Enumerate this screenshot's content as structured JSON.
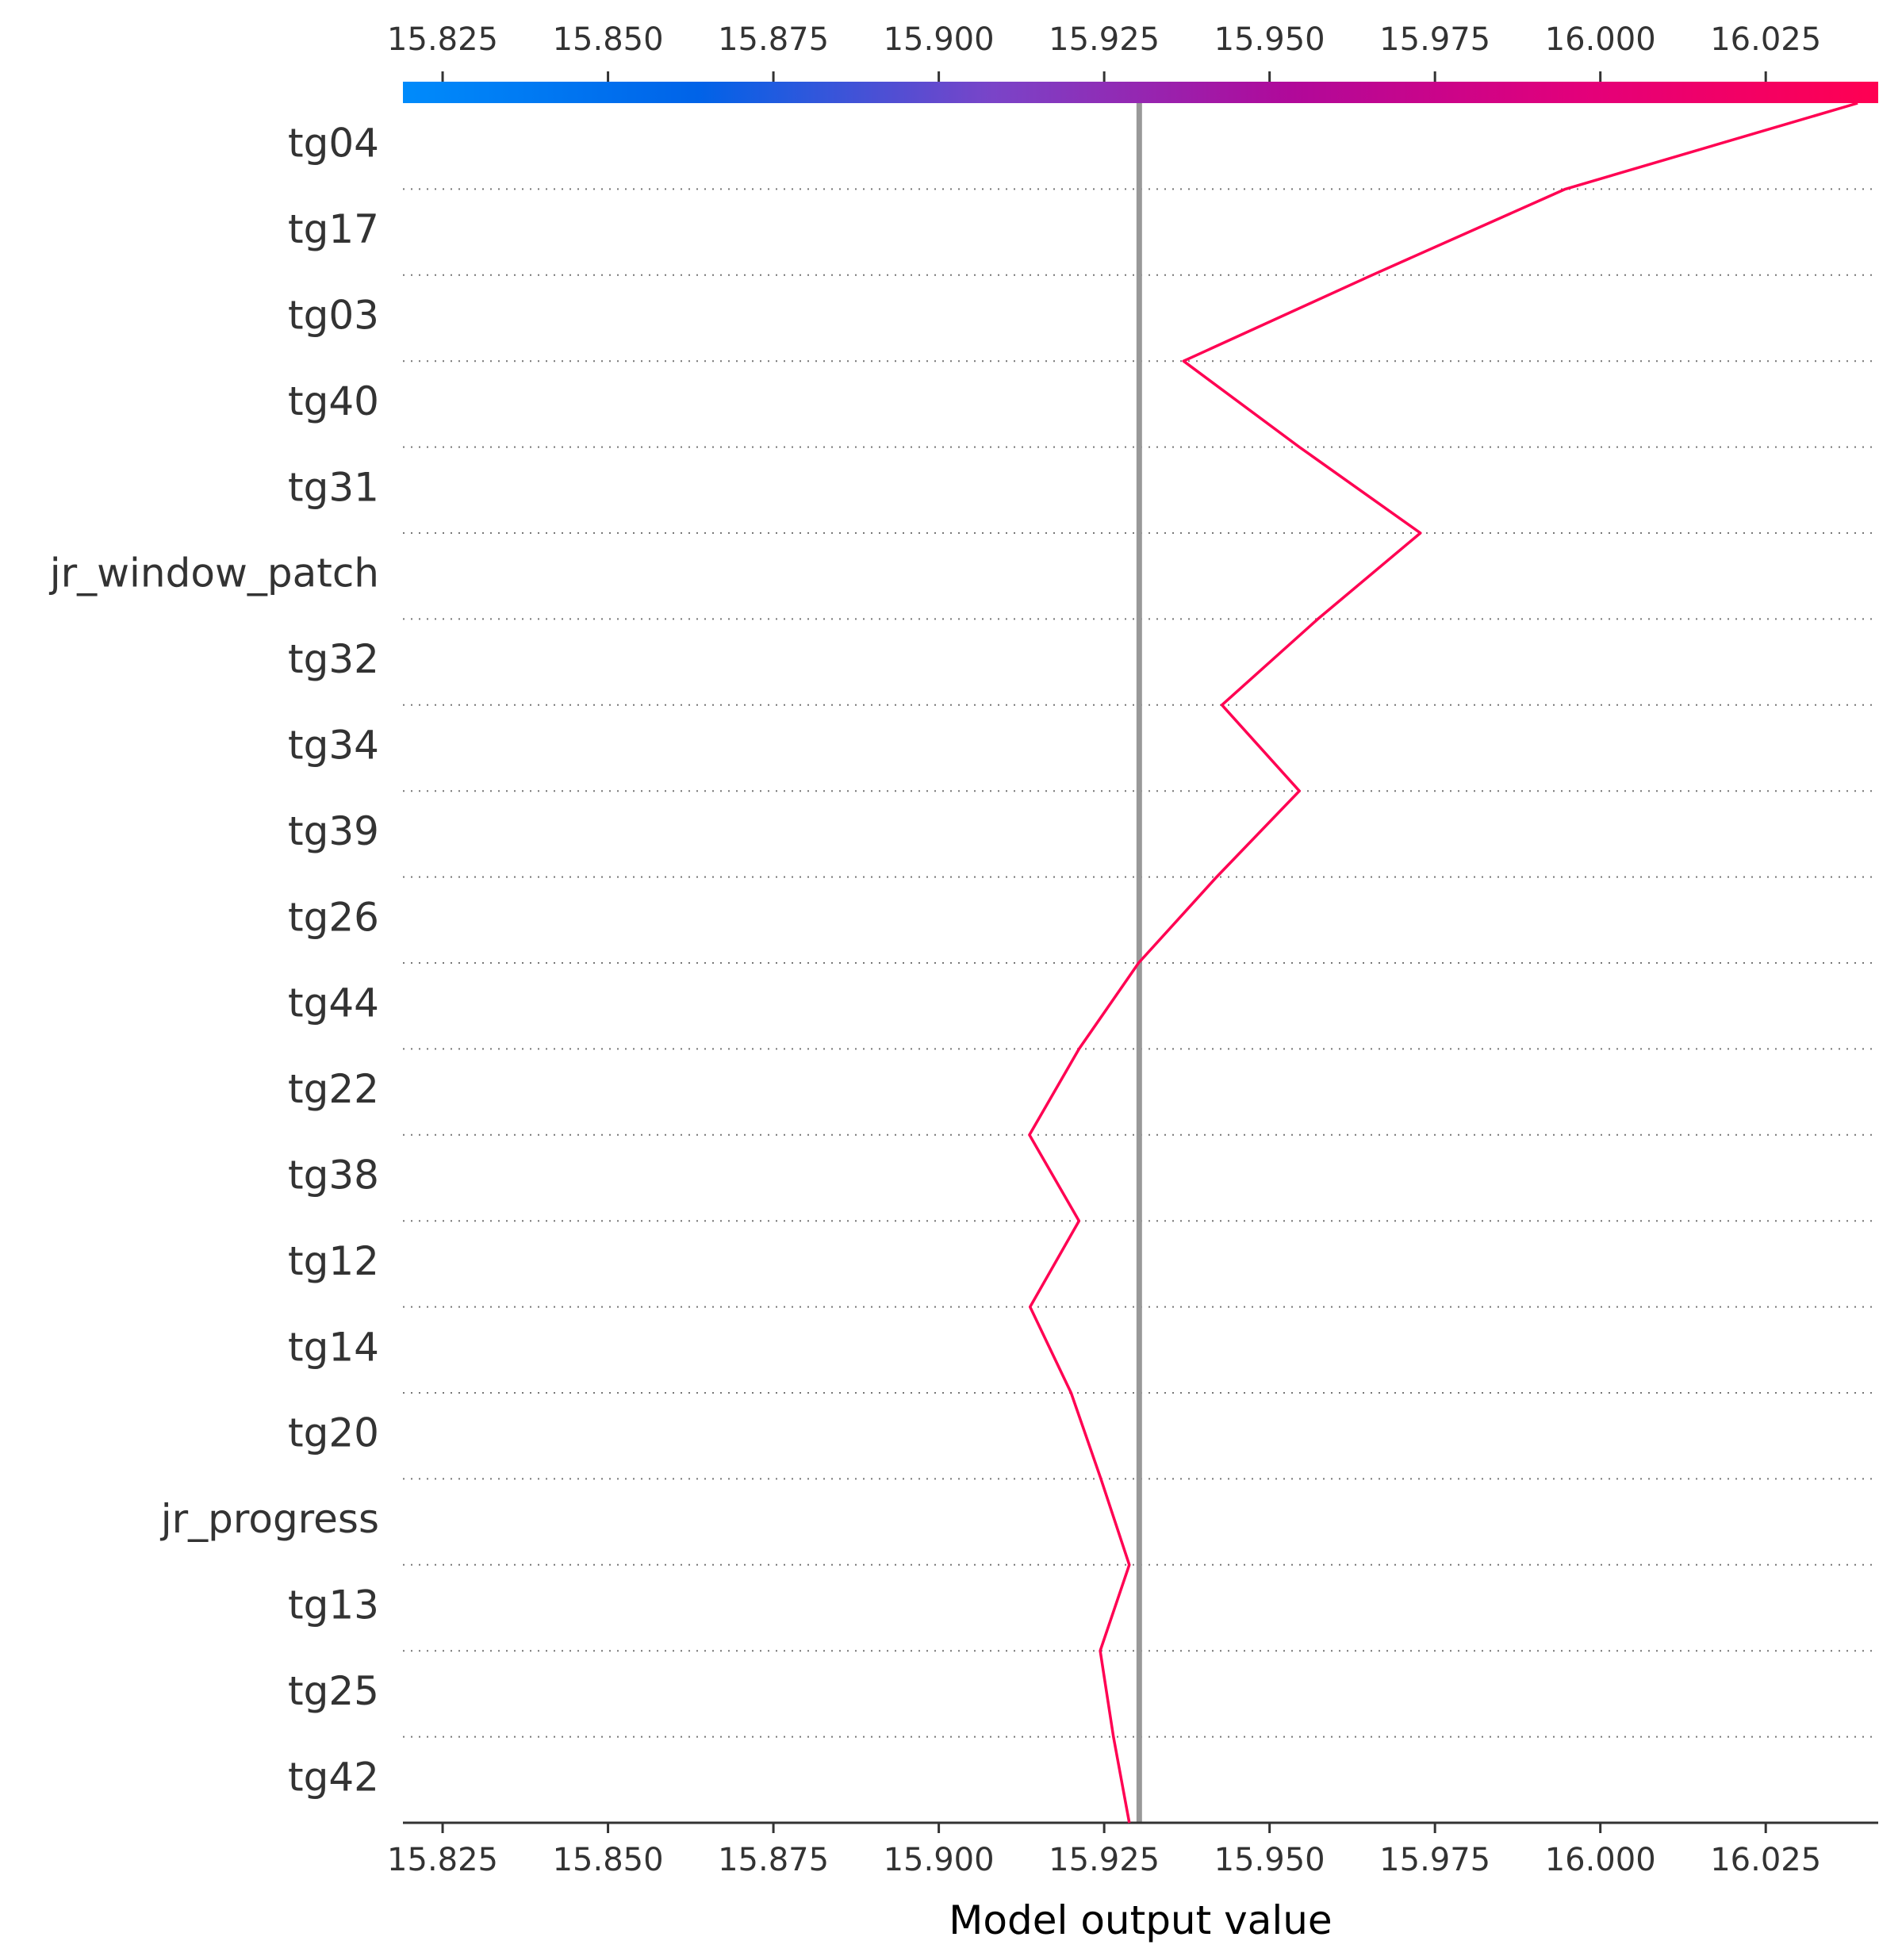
{
  "chart_data": {
    "type": "line",
    "xlabel": "Model output value",
    "xlim": [
      15.819,
      16.042
    ],
    "x_ticks": [
      "15.825",
      "15.850",
      "15.875",
      "15.900",
      "15.925",
      "15.950",
      "15.975",
      "16.000",
      "16.025"
    ],
    "x_tick_values": [
      15.825,
      15.85,
      15.875,
      15.9,
      15.925,
      15.95,
      15.975,
      16.0,
      16.025
    ],
    "base_value": 15.9303,
    "features": [
      "tg04",
      "tg17",
      "tg03",
      "tg40",
      "tg31",
      "jr_window_patch",
      "tg32",
      "tg34",
      "tg39",
      "tg26",
      "tg44",
      "tg22",
      "tg38",
      "tg12",
      "tg14",
      "tg20",
      "jr_progress",
      "tg13",
      "tg25",
      "tg42"
    ],
    "path_values": [
      16.0389,
      15.9947,
      15.9655,
      15.937,
      15.9545,
      15.9728,
      15.9573,
      15.9428,
      15.9545,
      15.942,
      15.9302,
      15.9212,
      15.9137,
      15.9212,
      15.9138,
      15.92,
      15.9245,
      15.9288,
      15.9244,
      15.9264,
      15.9288
    ],
    "grid": "dotted horizontal",
    "colorbar": {
      "position": "top",
      "stops": [
        "#008bfb",
        "#0063e8",
        "#7a44c8",
        "#b0099a",
        "#e3007a",
        "#ff0052"
      ]
    },
    "colors": {
      "line": "#ff0052",
      "base_line": "#999999",
      "axis": "#333333",
      "grid": "#777777"
    }
  }
}
